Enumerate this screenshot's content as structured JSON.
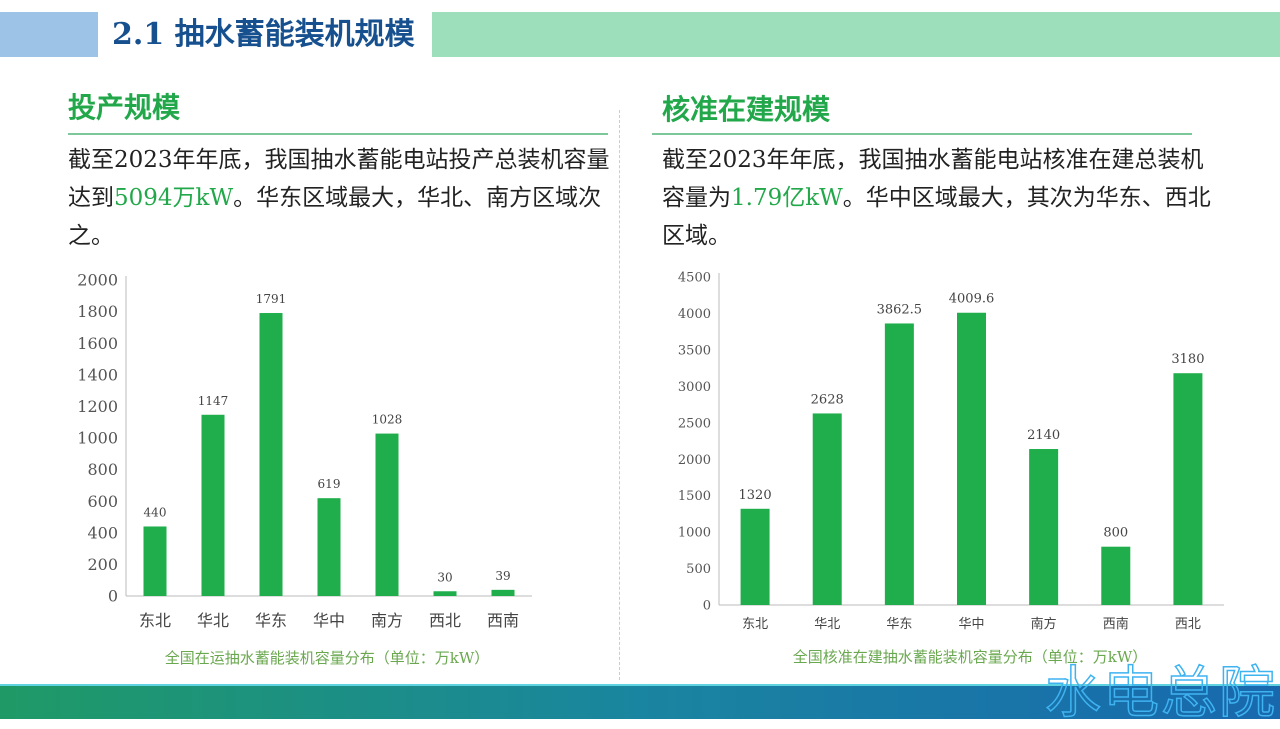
{
  "header": {
    "title": "2.1 抽水蓄能装机规模"
  },
  "left": {
    "heading": "投产规模",
    "text_before": "截至2023年年底，我国抽水蓄能电站投产总装机容量达到",
    "highlight": "5094万kW",
    "text_after": "。华东区域最大，华北、南方区域次之。",
    "caption": "全国在运抽水蓄能装机容量分布（单位：万kW）"
  },
  "right": {
    "heading": "核准在建规模",
    "text_before": "截至2023年年底，我国抽水蓄能电站核准在建总装机容量为",
    "highlight": "1.79亿kW",
    "text_after": "。华中区域最大，其次为华东、西北区域。",
    "caption": "全国核准在建抽水蓄能装机容量分布（单位：万kW）"
  },
  "watermark": "水电总院",
  "colors": {
    "bar": "#1fae4b",
    "accent": "#22a84a",
    "title": "#17508e"
  },
  "chart_data": [
    {
      "type": "bar",
      "title": "全国在运抽水蓄能装机容量分布（单位：万kW）",
      "categories": [
        "东北",
        "华北",
        "华东",
        "华中",
        "南方",
        "西北",
        "西南"
      ],
      "values": [
        440,
        1147,
        1791,
        619,
        1028,
        30,
        39
      ],
      "labels": [
        "440",
        "1147",
        "1791",
        "619",
        "1028",
        "30",
        "39"
      ],
      "ylim": [
        0,
        2000
      ],
      "yticks": [
        0,
        200,
        400,
        600,
        800,
        1000,
        1200,
        1400,
        1600,
        1800,
        2000
      ]
    },
    {
      "type": "bar",
      "title": "全国核准在建抽水蓄能装机容量分布（单位：万kW）",
      "categories": [
        "东北",
        "华北",
        "华东",
        "华中",
        "南方",
        "西南",
        "西北"
      ],
      "values": [
        1320,
        2628,
        3862.5,
        4009.6,
        2140,
        800,
        3180
      ],
      "labels": [
        "1320",
        "2628",
        "3862.5",
        "4009.6",
        "2140",
        "800",
        "3180"
      ],
      "ylim": [
        0,
        4500
      ],
      "yticks": [
        0,
        500,
        1000,
        1500,
        2000,
        2500,
        3000,
        3500,
        4000,
        4500
      ]
    }
  ]
}
